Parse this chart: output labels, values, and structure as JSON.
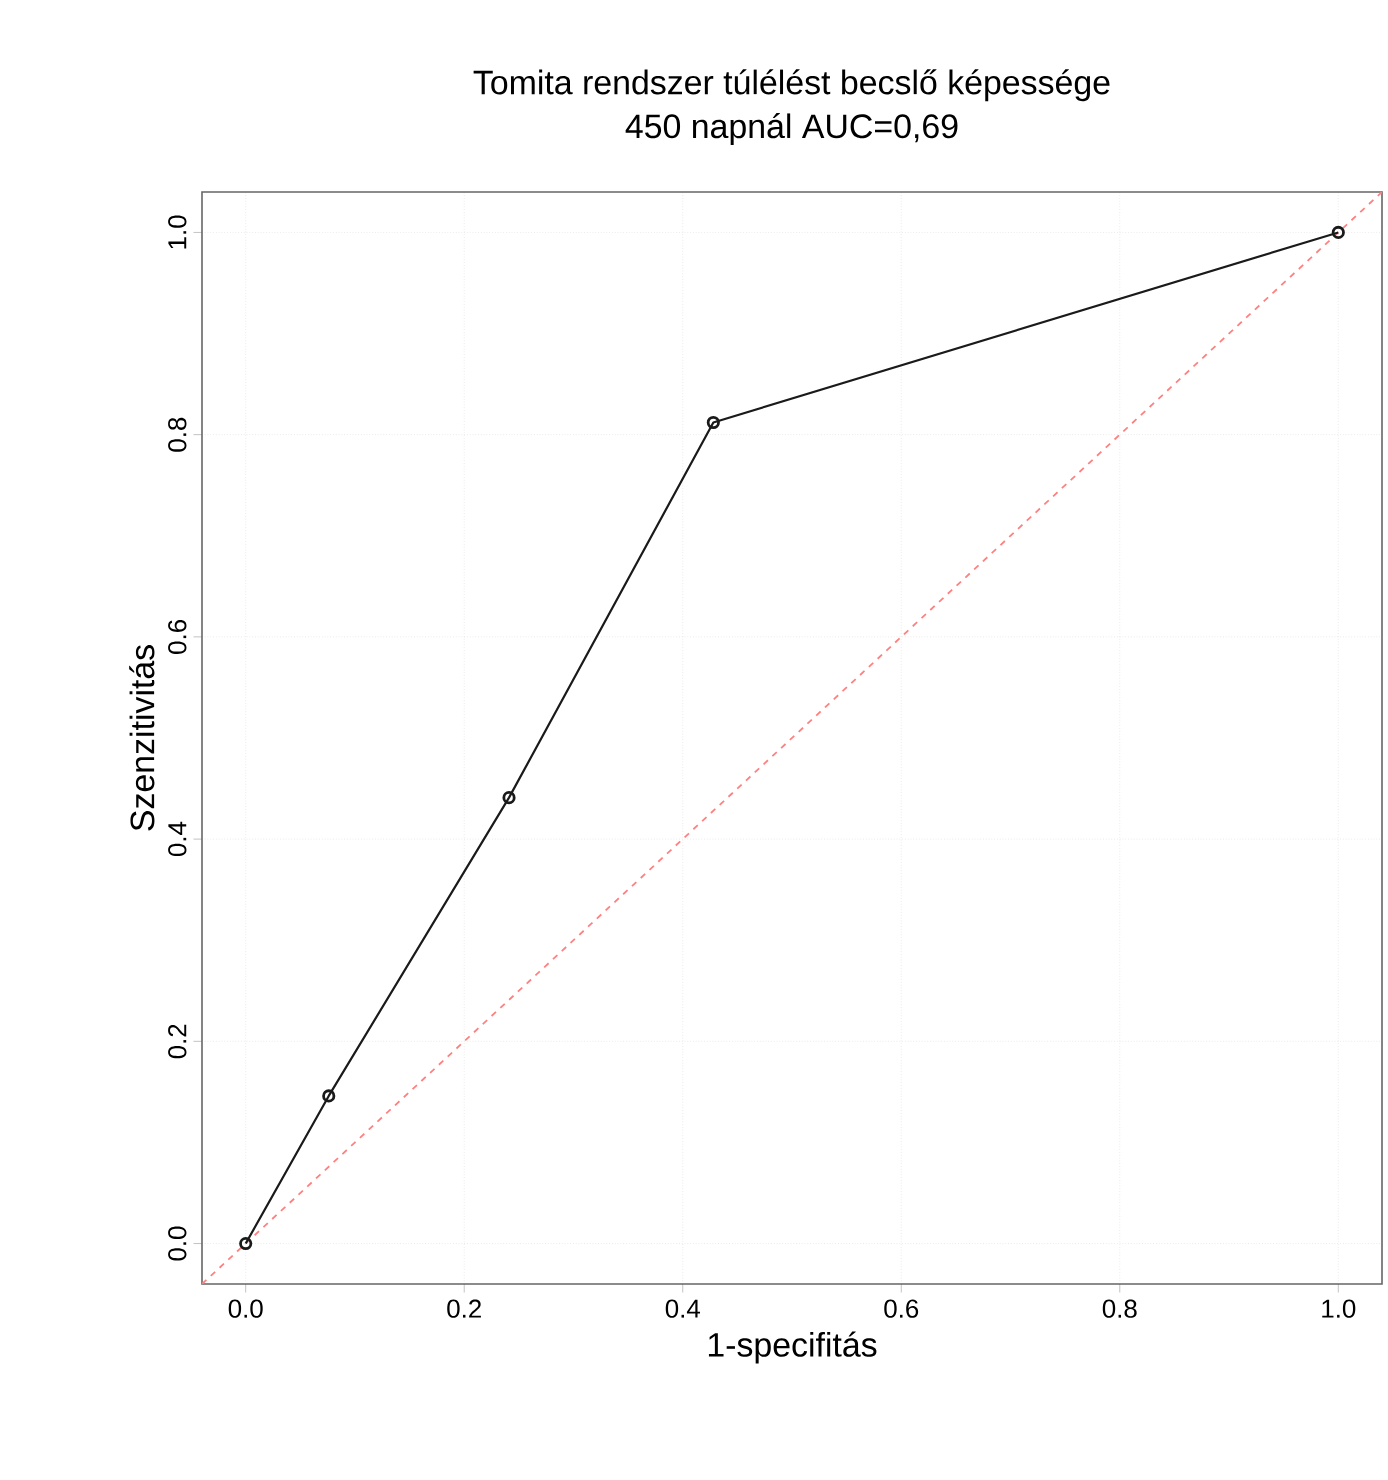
{
  "chart_data": {
    "type": "line",
    "title": "Tomita rendszer túlélést becslő képessége",
    "subtitle": "450 napnál AUC=0,69",
    "xlabel": "1-specifitás",
    "ylabel": "Szenzitivitás",
    "xlim": [
      -0.04,
      1.04
    ],
    "ylim": [
      -0.04,
      1.04
    ],
    "xticks": [
      {
        "value": 0,
        "label": "0.0"
      },
      {
        "value": 0.2,
        "label": "0.2"
      },
      {
        "value": 0.4,
        "label": "0.4"
      },
      {
        "value": 0.6,
        "label": "0.6"
      },
      {
        "value": 0.8,
        "label": "0.8"
      },
      {
        "value": 1,
        "label": "1.0"
      }
    ],
    "yticks": [
      {
        "value": 0,
        "label": "0.0"
      },
      {
        "value": 0.2,
        "label": "0.2"
      },
      {
        "value": 0.4,
        "label": "0.4"
      },
      {
        "value": 0.6,
        "label": "0.6"
      },
      {
        "value": 0.8,
        "label": "0.8"
      },
      {
        "value": 1,
        "label": "1.0"
      }
    ],
    "grid": true,
    "series": [
      {
        "color": "#ff8080",
        "line_style": "dashed",
        "marker": "none",
        "x": [
          -0.04,
          1.04
        ],
        "values": [
          -0.04,
          1.04
        ]
      },
      {
        "color": "#1a1a1a",
        "line_style": "solid",
        "marker": "circle",
        "x": [
          0,
          0.076,
          0.241,
          0.428,
          1
        ],
        "values": [
          0,
          0.146,
          0.441,
          0.812,
          1
        ]
      }
    ]
  }
}
